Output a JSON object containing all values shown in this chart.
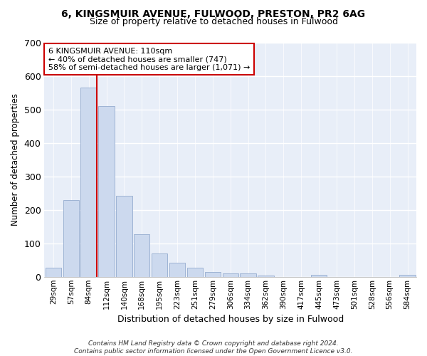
{
  "title1": "6, KINGSMUIR AVENUE, FULWOOD, PRESTON, PR2 6AG",
  "title2": "Size of property relative to detached houses in Fulwood",
  "xlabel": "Distribution of detached houses by size in Fulwood",
  "ylabel": "Number of detached properties",
  "bar_labels": [
    "29sqm",
    "57sqm",
    "84sqm",
    "112sqm",
    "140sqm",
    "168sqm",
    "195sqm",
    "223sqm",
    "251sqm",
    "279sqm",
    "306sqm",
    "334sqm",
    "362sqm",
    "390sqm",
    "417sqm",
    "445sqm",
    "473sqm",
    "501sqm",
    "528sqm",
    "556sqm",
    "584sqm"
  ],
  "bar_values": [
    28,
    229,
    565,
    510,
    242,
    127,
    70,
    43,
    27,
    14,
    10,
    10,
    4,
    0,
    0,
    5,
    0,
    0,
    0,
    0,
    6
  ],
  "bar_color": "#ccd9ee",
  "bar_edge_color": "#9eb3d4",
  "vline_x_index": 2,
  "vline_right_edge": true,
  "vline_color": "#cc0000",
  "annotation_text": "6 KINGSMUIR AVENUE: 110sqm\n← 40% of detached houses are smaller (747)\n58% of semi-detached houses are larger (1,071) →",
  "annotation_box_color": "white",
  "annotation_box_edge": "#cc0000",
  "ylim": [
    0,
    700
  ],
  "yticks": [
    0,
    100,
    200,
    300,
    400,
    500,
    600,
    700
  ],
  "footer": "Contains HM Land Registry data © Crown copyright and database right 2024.\nContains public sector information licensed under the Open Government Licence v3.0.",
  "bg_color": "#ffffff",
  "plot_bg_color": "#e8eef8",
  "grid_color": "#ffffff"
}
